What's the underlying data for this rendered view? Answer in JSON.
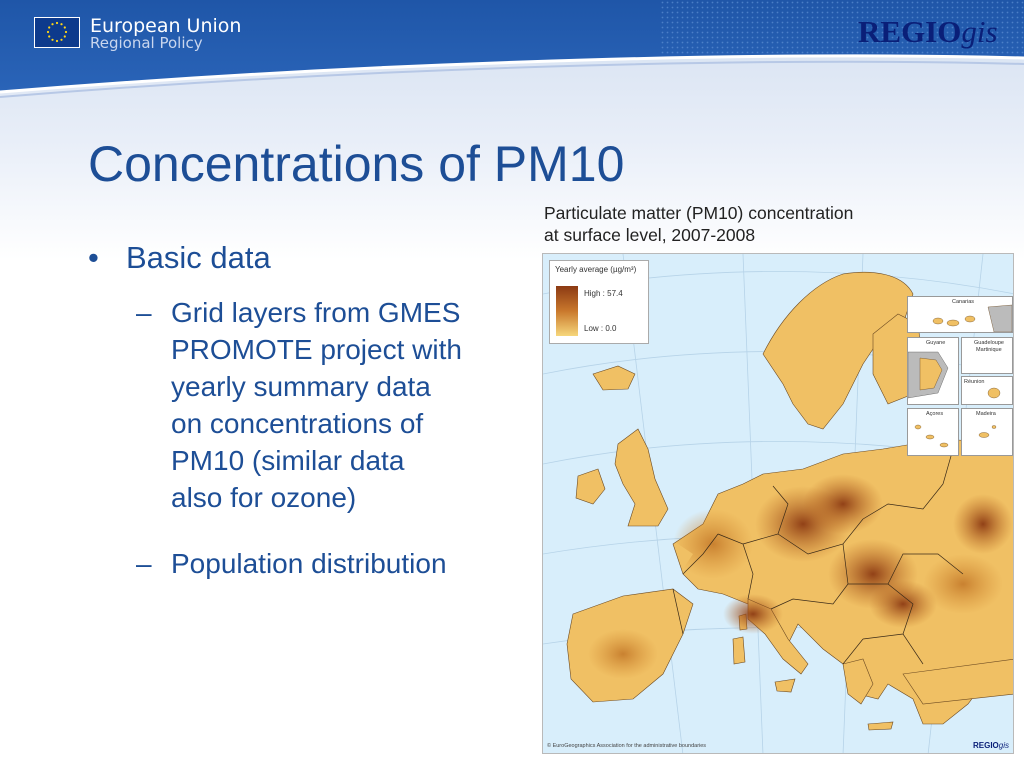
{
  "header": {
    "org_name": "European Union",
    "org_sub": "Regional Policy",
    "brand_main": "REGIO",
    "brand_suffix": "gis",
    "band_color": "#1f56a8"
  },
  "slide": {
    "title": "Concentrations of PM10",
    "bullets": {
      "top_marker": "•",
      "top": "Basic data",
      "sub_marker": "–",
      "sub1_lines": [
        "Grid layers from GMES",
        "PROMOTE project with",
        "yearly summary data",
        "on concentrations of",
        "PM10 (similar data",
        "also for ozone)"
      ],
      "sub2": "Population distribution"
    }
  },
  "map": {
    "caption_lines": [
      "Particulate matter (PM10) concentration",
      "at surface level, 2007-2008"
    ],
    "legend": {
      "title": "Yearly average (µg/m³)",
      "high": "High : 57.4",
      "low": "Low : 0.0",
      "high_color": "#8c3a13",
      "low_color": "#f6d77c"
    },
    "insets": {
      "canarias": "Canarias",
      "guyane": "Guyane",
      "guadeloupe": "Guadeloupe",
      "martinique": "Martinique",
      "reunion": "Réunion",
      "acores": "Açores",
      "madeira": "Madeira"
    },
    "copyright": "© EuroGeographics Association for the administrative boundaries",
    "logo_main": "REGIO",
    "logo_suffix": "gis"
  }
}
